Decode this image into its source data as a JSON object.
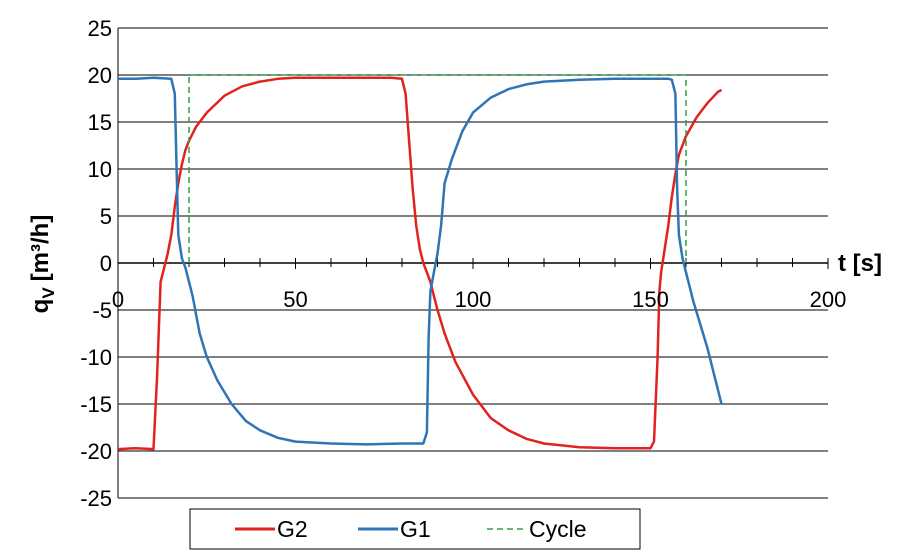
{
  "chart_data": {
    "type": "line",
    "title": "",
    "xlabel": "t [s]",
    "ylabel_main": "q",
    "ylabel_sub": "V",
    "ylabel_unit": "[m³/h]",
    "xlim": [
      0,
      200
    ],
    "ylim": [
      -25,
      25
    ],
    "x_ticks": [
      0,
      50,
      100,
      150,
      200
    ],
    "y_ticks": [
      -25,
      -20,
      -15,
      -10,
      -5,
      0,
      5,
      10,
      15,
      20,
      25
    ],
    "x_tick_labels": [
      "0",
      "50",
      "100",
      "150",
      "200"
    ],
    "y_tick_labels": [
      "-25",
      "-20",
      "-15",
      "-10",
      "-5",
      "0",
      "5",
      "10",
      "15",
      "20",
      "25"
    ],
    "grid": "horizontal",
    "legend_position": "bottom",
    "series": [
      {
        "name": "G2",
        "color": "#e0231f",
        "style": "solid",
        "x": [
          0,
          5,
          10,
          11,
          12,
          13,
          14,
          15,
          16,
          17,
          18,
          19,
          20,
          22,
          25,
          30,
          35,
          40,
          45,
          50,
          60,
          70,
          77,
          80,
          81,
          82,
          83,
          84,
          85,
          86,
          87,
          88,
          89,
          90,
          92,
          95,
          100,
          105,
          110,
          115,
          120,
          130,
          140,
          150,
          151,
          152,
          152.5,
          153,
          154,
          155,
          156,
          157,
          158,
          160,
          163,
          166,
          169,
          170
        ],
        "y": [
          -19.8,
          -19.7,
          -19.8,
          -12,
          -2,
          -0.5,
          1,
          3,
          6,
          8.5,
          10.5,
          12,
          13,
          14.5,
          16,
          17.8,
          18.8,
          19.3,
          19.6,
          19.7,
          19.7,
          19.7,
          19.7,
          19.6,
          18,
          13,
          8,
          4,
          1.5,
          0,
          -1,
          -2,
          -3.5,
          -5,
          -7.5,
          -10.5,
          -14,
          -16.5,
          -17.8,
          -18.7,
          -19.2,
          -19.6,
          -19.7,
          -19.7,
          -19,
          -10,
          -3,
          -1,
          1.5,
          4,
          7,
          9.5,
          11.5,
          13.5,
          15.5,
          17,
          18.2,
          18.4
        ]
      },
      {
        "name": "G1",
        "color": "#2e75b6",
        "style": "solid",
        "x": [
          0,
          5,
          10,
          15,
          16,
          16.5,
          17,
          18,
          19,
          20,
          21,
          22,
          23,
          25,
          28,
          32,
          36,
          40,
          45,
          50,
          60,
          70,
          80,
          82,
          84,
          86,
          87,
          87.5,
          88,
          89,
          90,
          91,
          92,
          94,
          97,
          100,
          105,
          110,
          115,
          120,
          130,
          140,
          150,
          155,
          156,
          157,
          157.5,
          158,
          159,
          160,
          161,
          162,
          164,
          166,
          168,
          170
        ],
        "y": [
          19.6,
          19.6,
          19.7,
          19.6,
          18,
          10,
          3,
          0.5,
          -0.5,
          -2,
          -3.5,
          -5.5,
          -7.5,
          -10,
          -12.5,
          -15,
          -16.8,
          -17.8,
          -18.6,
          -19,
          -19.2,
          -19.3,
          -19.2,
          -19.2,
          -19.2,
          -19.2,
          -18,
          -8,
          -3,
          -1,
          1,
          4,
          8.5,
          11,
          14,
          16,
          17.6,
          18.5,
          19,
          19.3,
          19.5,
          19.6,
          19.6,
          19.6,
          19.5,
          18,
          8,
          3,
          0.5,
          -1,
          -2.5,
          -4,
          -6.5,
          -9,
          -12,
          -15
        ]
      },
      {
        "name": "Cycle",
        "color": "#2ea043",
        "style": "dashed",
        "x": [
          20,
          20,
          160,
          160
        ],
        "y": [
          0,
          20,
          20,
          0
        ]
      }
    ]
  }
}
